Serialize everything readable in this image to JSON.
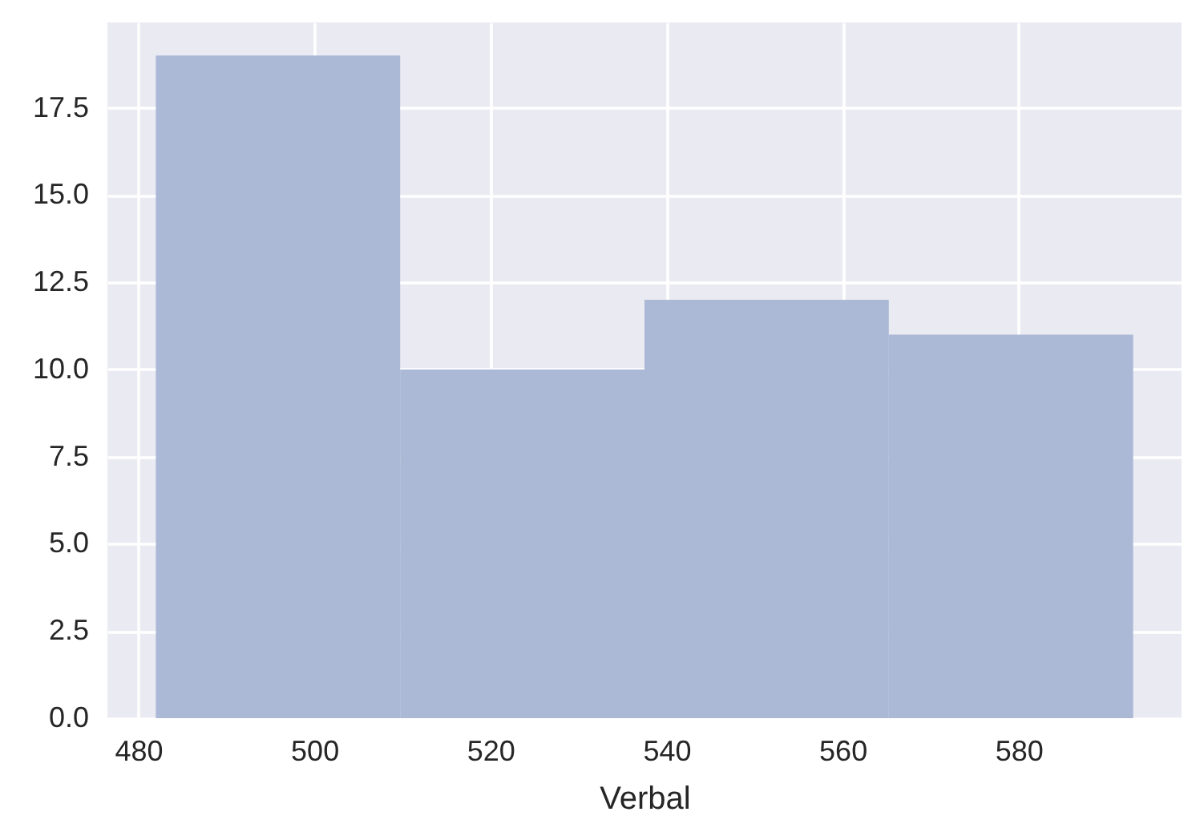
{
  "chart_data": {
    "type": "histogram",
    "xlabel": "Verbal",
    "bins": [
      482,
      509.75,
      537.5,
      565.25,
      593
    ],
    "values": [
      19,
      10,
      12,
      11
    ],
    "color": "#abb9d6",
    "xlim": [
      476.5,
      598.5
    ],
    "xticks": [
      480,
      500,
      520,
      540,
      560,
      580
    ],
    "ylim": [
      0,
      19.95
    ],
    "yticks": [
      {
        "value": 0,
        "label": "0.0"
      },
      2.5,
      {
        "value": 5,
        "label": "5.0"
      },
      7.5,
      {
        "value": 10,
        "label": "10.0"
      },
      12.5,
      {
        "value": 15,
        "label": "15.0"
      },
      17.5
    ],
    "grid": true
  }
}
